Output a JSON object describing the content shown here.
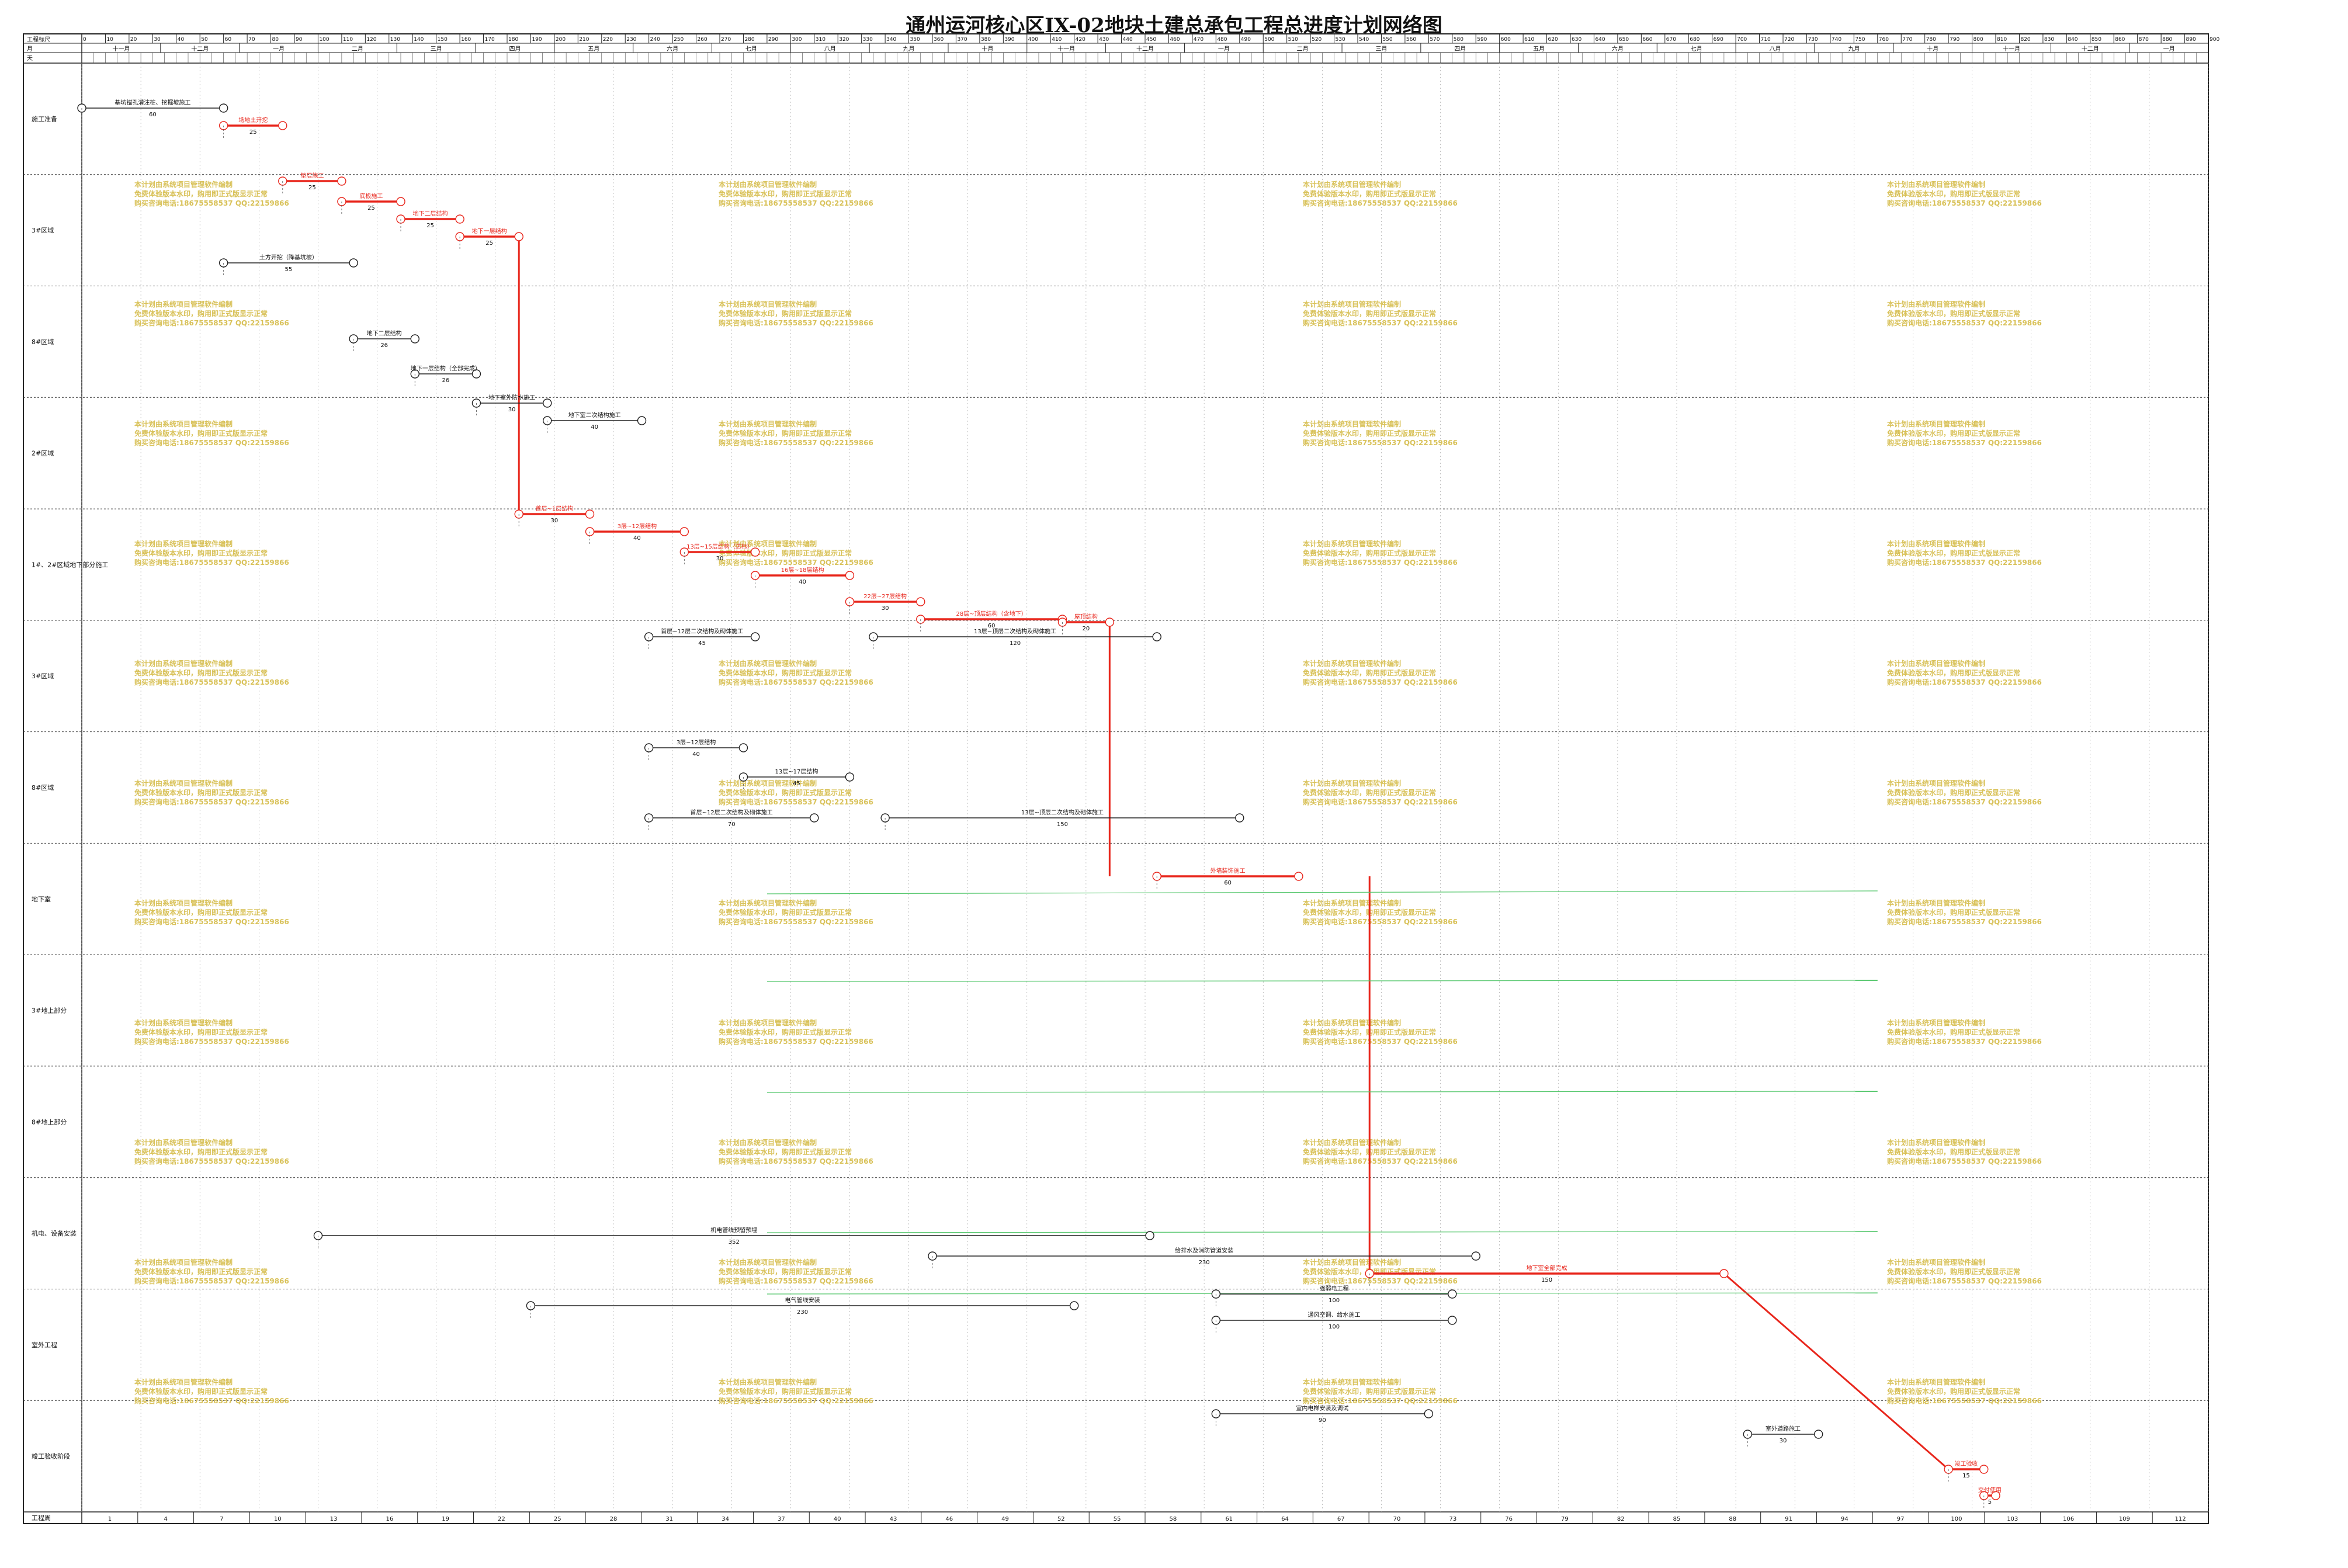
{
  "title": "通州运河核心区IX-02地块土建总承包工程总进度计划网络图",
  "header": {
    "row_labels": [
      "工程标尺",
      "月",
      "天"
    ],
    "scale_ticks": [
      0,
      10,
      20,
      30,
      40,
      50,
      60,
      70,
      80,
      90,
      100,
      110,
      120,
      130,
      140,
      150,
      160,
      170,
      180,
      190,
      200,
      210,
      220,
      230,
      240,
      250,
      260,
      270,
      280,
      290,
      300,
      310,
      320,
      330,
      340,
      350,
      360,
      370,
      380,
      390,
      400,
      410,
      420,
      430,
      440,
      450,
      460,
      470,
      480,
      490,
      500,
      510,
      520,
      530,
      540,
      550,
      560,
      570,
      580,
      590,
      600,
      610,
      620,
      630,
      640,
      650,
      660,
      670,
      680,
      690,
      700,
      710,
      720,
      730,
      740,
      750,
      760,
      770,
      780,
      790,
      800,
      810,
      820,
      830,
      840,
      850,
      860,
      870,
      880,
      890,
      900
    ],
    "months": [
      "十一月",
      "十二月",
      "一月",
      "二月",
      "三月",
      "四月",
      "五月",
      "六月",
      "七月",
      "八月",
      "九月",
      "十月",
      "十一月",
      "十二月",
      "一月",
      "二月",
      "三月",
      "四月",
      "五月",
      "六月",
      "七月",
      "八月",
      "九月",
      "十月",
      "十一月",
      "十二月",
      "一月"
    ]
  },
  "footer": {
    "label": "工程周",
    "weeks": [
      1,
      4,
      7,
      10,
      13,
      16,
      19,
      22,
      25,
      28,
      31,
      34,
      37,
      40,
      43,
      46,
      49,
      52,
      55,
      58,
      61,
      64,
      67,
      70,
      73,
      76,
      79,
      82,
      85,
      88,
      91,
      94,
      97,
      100,
      103,
      106,
      109,
      112
    ]
  },
  "sections": [
    {
      "name": "施工准备"
    },
    {
      "name": "3#区域"
    },
    {
      "name": "8#区域"
    },
    {
      "name": "2#区域"
    },
    {
      "name": "1#、2#区域地下部分施工"
    },
    {
      "name": "3#区域"
    },
    {
      "name": "8#区域"
    },
    {
      "name": "地下室"
    },
    {
      "name": "3#地上部分"
    },
    {
      "name": "8#地上部分"
    },
    {
      "name": "机电、设备安装"
    },
    {
      "name": "室外工程"
    },
    {
      "name": "竣工验收阶段"
    }
  ],
  "tasks": [
    {
      "label": "基坑锚孔灌注桩、挖掘坡施工",
      "dur": "60"
    },
    {
      "label": "场地土开挖",
      "dur": "25"
    },
    {
      "label": "土方开挖（降基坑坡）",
      "dur": "55"
    },
    {
      "label": "垫层施工",
      "dur": "25"
    },
    {
      "label": "底板施工",
      "dur": "25"
    },
    {
      "label": "地下二层结构",
      "dur": "25"
    },
    {
      "label": "地下一层结构",
      "dur": "25"
    },
    {
      "label": "地下二层结构",
      "dur": "26"
    },
    {
      "label": "地下一层结构（全部完成）",
      "dur": "26"
    },
    {
      "label": "地下室外防水施工",
      "dur": "30"
    },
    {
      "label": "地下室二次结构施工",
      "dur": "40"
    },
    {
      "label": "首层~1层结构",
      "dur": "30"
    },
    {
      "label": "3层~12层结构",
      "dur": "40"
    },
    {
      "label": "13层~15层结构（达标）",
      "dur": "30"
    },
    {
      "label": "16层~18层结构",
      "dur": "40"
    },
    {
      "label": "22层~27层结构",
      "dur": "30"
    },
    {
      "label": "28层~顶层结构（含地下）",
      "dur": "60"
    },
    {
      "label": "屋顶结构",
      "dur": "20"
    },
    {
      "label": "首层~12层二次结构及砌体施工",
      "dur": "45"
    },
    {
      "label": "13层~顶层二次结构及砌体施工",
      "dur": "120"
    },
    {
      "label": "3层~12层结构",
      "dur": "40"
    },
    {
      "label": "13层~17层结构",
      "dur": "45"
    },
    {
      "label": "首层~12层二次结构及砌体施工",
      "dur": "70"
    },
    {
      "label": "13层~顶层二次结构及砌体施工",
      "dur": "150"
    },
    {
      "label": "机电管线预留预埋",
      "dur": "352"
    },
    {
      "label": "给排水及消防管道安装",
      "dur": "230"
    },
    {
      "label": "电气管线安装",
      "dur": "230"
    },
    {
      "label": "强弱电工程",
      "dur": "100"
    },
    {
      "label": "通风空调、给水施工",
      "dur": "100"
    },
    {
      "label": "室内电梯安装及调试",
      "dur": "90"
    },
    {
      "label": "地下室全部完成",
      "dur": "150"
    },
    {
      "label": "外墙装饰施工",
      "dur": "60"
    },
    {
      "label": "室外道路施工",
      "dur": "30"
    },
    {
      "label": "竣工验收",
      "dur": "15"
    },
    {
      "label": "交付使用",
      "dur": "5"
    }
  ],
  "watermark": {
    "line1": "本计划由系统项目管理软件编制",
    "line2": "免费体验版本水印，购用即正式版显示正常",
    "line3": "购买咨询电话:18675558537 QQ:22159866"
  },
  "colors": {
    "critical": "#e8261c",
    "normal": "#222222",
    "green_link": "#52c66a",
    "watermark": "#d9c25a"
  }
}
